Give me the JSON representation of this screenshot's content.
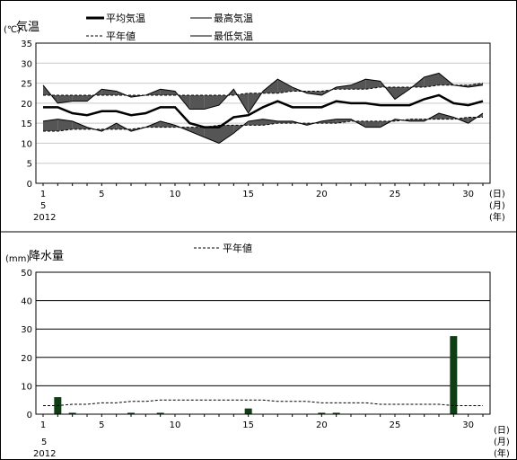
{
  "temperature_panel": {
    "title": "気温",
    "unit": "(℃)",
    "legend": {
      "avg": "平均気温",
      "max": "最高気温",
      "normal": "平年値",
      "min": "最低気温"
    }
  },
  "precip_panel": {
    "title": "降水量",
    "unit": "(mm)",
    "legend": {
      "normal": "平年値"
    }
  },
  "x_axis": {
    "suffix_day": "(日)",
    "suffix_month": "(月)",
    "suffix_year": "(年)",
    "month_label": "5",
    "year_label": "2012"
  },
  "chart_data": [
    {
      "type": "line",
      "title": "気温",
      "ylabel": "(℃)",
      "ylim": [
        0,
        35
      ],
      "yticks": [
        0,
        5,
        10,
        15,
        20,
        25,
        30,
        35
      ],
      "xlim": [
        1,
        31
      ],
      "xticks": [
        1,
        5,
        10,
        15,
        20,
        25,
        30
      ],
      "grid": true,
      "x": [
        1,
        2,
        3,
        4,
        5,
        6,
        7,
        8,
        9,
        10,
        11,
        12,
        13,
        14,
        15,
        16,
        17,
        18,
        19,
        20,
        21,
        22,
        23,
        24,
        25,
        26,
        27,
        28,
        29,
        30,
        31
      ],
      "series": [
        {
          "name": "最高気温",
          "values": [
            24.5,
            20,
            20.5,
            20.5,
            23.5,
            23,
            21.5,
            22,
            23.5,
            23,
            18.5,
            18.5,
            19.5,
            23.5,
            17.5,
            23,
            26,
            24,
            22.5,
            22,
            24,
            24.5,
            26,
            25.5,
            21,
            23.5,
            26.5,
            27.5,
            24.5,
            24,
            24.5
          ]
        },
        {
          "name": "平年値(最高)",
          "values": [
            22,
            22,
            22,
            22,
            22,
            22,
            22,
            22,
            22,
            22,
            22,
            22,
            22,
            22,
            22.5,
            22.5,
            22.5,
            23,
            23,
            23,
            23.5,
            23.5,
            23.5,
            24,
            24,
            24,
            24,
            24.5,
            24.5,
            24.5,
            25
          ]
        },
        {
          "name": "平均気温",
          "values": [
            19,
            19,
            17.5,
            17,
            18,
            18,
            17,
            17.5,
            19,
            19,
            15,
            14,
            14,
            16.5,
            17,
            19,
            20.5,
            19,
            19,
            19,
            20.5,
            20,
            20,
            19.5,
            19.5,
            19.5,
            21,
            22,
            20,
            19.5,
            20.5
          ]
        },
        {
          "name": "最低気温",
          "values": [
            15.5,
            16,
            15.5,
            14,
            13,
            15,
            13,
            14,
            15.5,
            14.5,
            13,
            11.5,
            10,
            12.5,
            15.5,
            16,
            15.5,
            15.5,
            14.5,
            15.5,
            16,
            16,
            14,
            14,
            16,
            15.5,
            15.5,
            17.5,
            16.5,
            15,
            17.5
          ]
        },
        {
          "name": "平年値(最低)",
          "values": [
            13,
            13,
            13.5,
            13.5,
            13.5,
            13.5,
            13.5,
            14,
            14,
            14,
            14,
            14,
            14.5,
            14.5,
            14.5,
            14.5,
            15,
            15,
            15,
            15,
            15,
            15.5,
            15.5,
            15.5,
            15.5,
            16,
            16,
            16,
            16,
            16.5,
            16.5
          ]
        }
      ]
    },
    {
      "type": "bar",
      "title": "降水量",
      "ylabel": "(mm)",
      "ylim": [
        0,
        50
      ],
      "yticks": [
        0,
        10,
        20,
        30,
        40,
        50
      ],
      "xlim": [
        1,
        31
      ],
      "xticks": [
        1,
        5,
        10,
        15,
        20,
        25,
        30
      ],
      "grid": true,
      "x": [
        1,
        2,
        3,
        4,
        5,
        6,
        7,
        8,
        9,
        10,
        11,
        12,
        13,
        14,
        15,
        16,
        17,
        18,
        19,
        20,
        21,
        22,
        23,
        24,
        25,
        26,
        27,
        28,
        29,
        30,
        31
      ],
      "series": [
        {
          "name": "降水量",
          "values": [
            0,
            6,
            0.5,
            0,
            0,
            0,
            0.5,
            0,
            0.5,
            0,
            0,
            0,
            0,
            0,
            2,
            0,
            0,
            0,
            0,
            0.5,
            0.5,
            0,
            0,
            0,
            0,
            0,
            0,
            0,
            27.5,
            0,
            0
          ]
        },
        {
          "name": "平年値",
          "values": [
            3,
            3,
            3.5,
            3.5,
            4,
            4,
            4.5,
            4.5,
            5,
            5,
            5,
            5,
            5,
            5,
            5,
            5,
            4.5,
            4.5,
            4.5,
            4,
            4,
            4,
            4,
            3.5,
            3.5,
            3.5,
            3.5,
            3.5,
            3,
            3,
            3
          ]
        }
      ]
    }
  ]
}
